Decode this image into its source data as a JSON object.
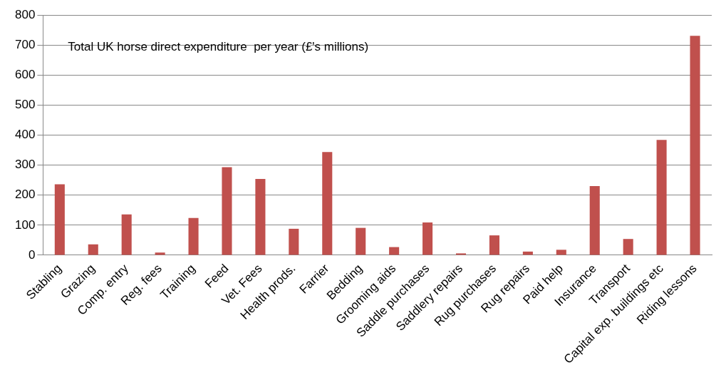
{
  "chart_data": {
    "type": "bar",
    "title": "Total UK horse direct expenditure  per year (£'s millions)",
    "categories": [
      "Stabling",
      "Grazing",
      "Comp. entry",
      "Reg. fees",
      "Training",
      "Feed",
      "Vet. Fees",
      "Health prods.",
      "Farrier",
      "Bedding",
      "Grooming aids",
      "Saddle purchases",
      "Saddlery repairs",
      "Rug purchases",
      "Rug repairs",
      "Paid help",
      "Insurance",
      "Transport",
      "Capital exp. buildings etc",
      "Riding lessons"
    ],
    "values": [
      236,
      36,
      136,
      9,
      124,
      293,
      254,
      88,
      344,
      91,
      27,
      109,
      6,
      66,
      12,
      18,
      230,
      54,
      384,
      731
    ],
    "color": "#c0504d",
    "ylim": [
      0,
      800
    ],
    "yticks": [
      0,
      100,
      200,
      300,
      400,
      500,
      600,
      700,
      800
    ],
    "grid": "y",
    "legend": false
  }
}
